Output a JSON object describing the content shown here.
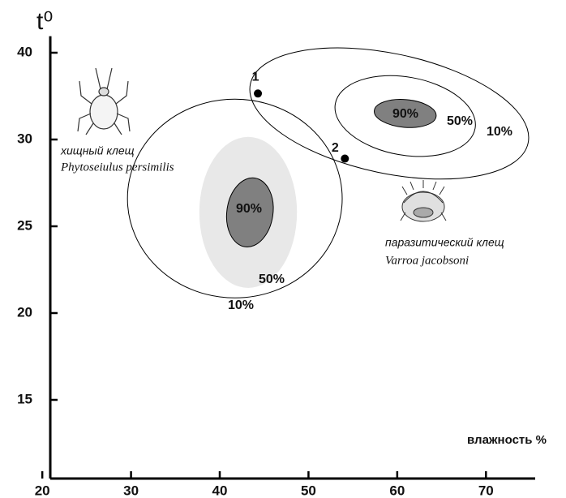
{
  "chart_data": {
    "type": "zones",
    "x_label": "влажность %",
    "y_label": "t⁰",
    "xlim": [
      20.9,
      75
    ],
    "xticks": [
      20,
      30,
      40,
      50,
      60,
      70
    ],
    "ylim": [
      10.5,
      41.9
    ],
    "yticks": [
      15,
      20,
      25,
      30,
      40
    ],
    "groups": [
      {
        "name": "хищный клещ",
        "latin": "Phytoseiulus persimilis",
        "zones": [
          {
            "label": "10%",
            "cx": 41.7,
            "cy": 26.6,
            "rx": 12.1,
            "ry": 6.5,
            "angle": 0,
            "fill": "none"
          },
          {
            "label": "50%",
            "cx": 43.2,
            "cy": 25.8,
            "rx": 5.5,
            "ry": 4.4,
            "angle": 0,
            "fill": "#e8e8e8"
          },
          {
            "label": "90%",
            "cx": 43.4,
            "cy": 25.8,
            "rx": 2.6,
            "ry": 2.0,
            "angle": 8,
            "fill": "#808080"
          }
        ]
      },
      {
        "name": "паразитический клещ",
        "latin": "Varroa jacobsoni",
        "zones": [
          {
            "label": "10%",
            "cx": 59.1,
            "cy": 33.0,
            "rx": 16.0,
            "ry": 5.6,
            "angle": 12,
            "fill": "none"
          },
          {
            "label": "50%",
            "cx": 60.9,
            "cy": 32.7,
            "rx": 8.0,
            "ry": 3.9,
            "angle": 10,
            "fill": "none"
          },
          {
            "label": "90%",
            "cx": 60.9,
            "cy": 33.0,
            "rx": 3.5,
            "ry": 1.6,
            "angle": 5,
            "fill": "#808080"
          }
        ]
      }
    ],
    "points": [
      {
        "label": "1",
        "x": 44.3,
        "y": 35.3
      },
      {
        "label": "2",
        "x": 54.1,
        "y": 28.9
      }
    ]
  }
}
